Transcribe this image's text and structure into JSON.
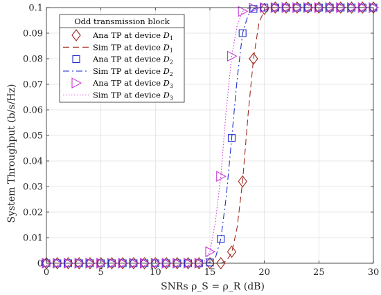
{
  "chart_data": {
    "type": "line",
    "title": "",
    "xlabel": "SNRs ρ_S = ρ_R (dB)",
    "ylabel": "System Throughput (b/s/Hz)",
    "xlim": [
      0,
      30
    ],
    "ylim": [
      0,
      0.1
    ],
    "xticks": [
      0,
      5,
      10,
      15,
      20,
      25,
      30
    ],
    "yticks": [
      0,
      0.01,
      0.02,
      0.03,
      0.04,
      0.05,
      0.06,
      0.07,
      0.08,
      0.09,
      0.1
    ],
    "grid": true,
    "legend": {
      "title": "Odd transmission block",
      "placement": "top-left"
    },
    "series": [
      {
        "name": "Ana TP at device D1",
        "label_main": "Ana TP at device ",
        "label_sub": "1",
        "style": "marker",
        "marker": "diamond",
        "color": "#a0281e",
        "x": [
          0,
          1,
          2,
          3,
          4,
          5,
          6,
          7,
          8,
          9,
          10,
          11,
          12,
          13,
          14,
          15,
          16,
          17,
          18,
          19,
          20,
          21,
          22,
          23,
          24,
          25,
          26,
          27,
          28,
          29,
          30
        ],
        "y": [
          0,
          0,
          0,
          0,
          0,
          0,
          0,
          0,
          0,
          0,
          0,
          0,
          0,
          0,
          0,
          0,
          0,
          0.0045,
          0.032,
          0.08,
          0.0995,
          0.1,
          0.1,
          0.1,
          0.1,
          0.1,
          0.1,
          0.1,
          0.1,
          0.1,
          0.1
        ]
      },
      {
        "name": "Sim TP at device D1",
        "label_main": "Sim TP at device ",
        "label_sub": "1",
        "style": "dashed",
        "color": "#a0281e",
        "x": [
          15,
          16,
          16.5,
          17,
          17.5,
          18,
          18.5,
          19,
          19.5,
          20,
          20.5,
          21,
          30
        ],
        "y": [
          0,
          0,
          0.0008,
          0.004,
          0.014,
          0.032,
          0.058,
          0.08,
          0.094,
          0.099,
          0.0998,
          0.1,
          0.1
        ]
      },
      {
        "name": "Ana TP at device D2",
        "label_main": "Ana TP at device ",
        "label_sub": "2",
        "style": "marker",
        "marker": "square",
        "color": "#1f2fc8",
        "x": [
          0,
          1,
          2,
          3,
          4,
          5,
          6,
          7,
          8,
          9,
          10,
          11,
          12,
          13,
          14,
          15,
          16,
          17,
          18,
          19,
          20,
          21,
          22,
          23,
          24,
          25,
          26,
          27,
          28,
          29,
          30
        ],
        "y": [
          0,
          0,
          0,
          0,
          0,
          0,
          0,
          0,
          0,
          0,
          0,
          0,
          0,
          0,
          0,
          0.0003,
          0.0095,
          0.049,
          0.09,
          0.0995,
          0.1,
          0.1,
          0.1,
          0.1,
          0.1,
          0.1,
          0.1,
          0.1,
          0.1,
          0.1,
          0.1
        ]
      },
      {
        "name": "Sim TP at device D2",
        "label_main": "Sim TP at device ",
        "label_sub": "2",
        "style": "dashdot",
        "color": "#1f2fc8",
        "x": [
          14.5,
          15,
          15.5,
          16,
          16.5,
          17,
          17.5,
          18,
          18.5,
          19,
          19.5,
          20,
          30
        ],
        "y": [
          0,
          0.0003,
          0.002,
          0.0095,
          0.026,
          0.049,
          0.072,
          0.09,
          0.097,
          0.0995,
          0.0999,
          0.1,
          0.1
        ]
      },
      {
        "name": "Ana TP at device D3",
        "label_main": "Ana TP at device ",
        "label_sub": "3",
        "style": "marker",
        "marker": "triangle-right",
        "color": "#c63bd6",
        "x": [
          0,
          1,
          2,
          3,
          4,
          5,
          6,
          7,
          8,
          9,
          10,
          11,
          12,
          13,
          14,
          15,
          16,
          17,
          18,
          19,
          20,
          21,
          22,
          23,
          24,
          25,
          26,
          27,
          28,
          29,
          30
        ],
        "y": [
          0,
          0,
          0,
          0,
          0,
          0,
          0,
          0,
          0,
          0,
          0,
          0,
          0,
          0,
          0,
          0.0045,
          0.034,
          0.081,
          0.0985,
          0.0998,
          0.1,
          0.1,
          0.1,
          0.1,
          0.1,
          0.1,
          0.1,
          0.1,
          0.1,
          0.1,
          0.1
        ]
      },
      {
        "name": "Sim TP at device D3",
        "label_main": "Sim TP at device ",
        "label_sub": "3",
        "style": "dotted",
        "color": "#c63bd6",
        "x": [
          14,
          14.5,
          15,
          15.5,
          16,
          16.5,
          17,
          17.5,
          18,
          18.5,
          19,
          30
        ],
        "y": [
          0,
          0.0008,
          0.0045,
          0.016,
          0.034,
          0.06,
          0.081,
          0.093,
          0.0985,
          0.0996,
          0.1,
          0.1
        ]
      }
    ]
  }
}
